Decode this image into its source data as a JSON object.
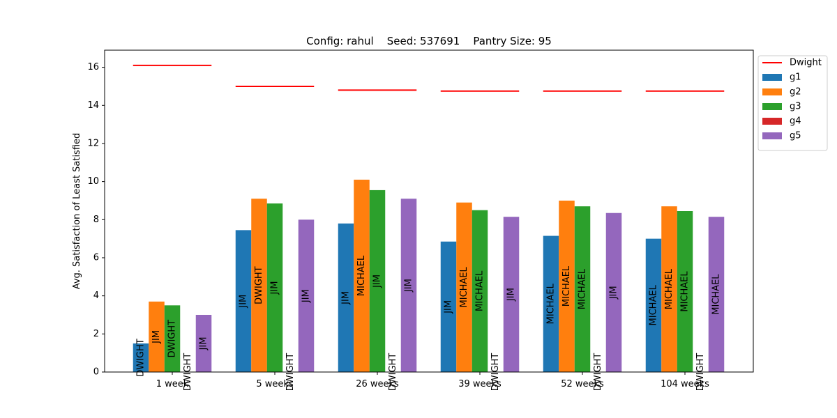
{
  "chart_data": {
    "type": "bar",
    "title": "Config: rahul    Seed: 537691    Pantry Size: 95",
    "xlabel": "",
    "ylabel": "Avg. Satisfaction of Least Satisfied",
    "ylim": [
      0,
      16.9
    ],
    "yticks": [
      0,
      2,
      4,
      6,
      8,
      10,
      12,
      14,
      16
    ],
    "categories": [
      "1 week",
      "5 weeks",
      "26 weeks",
      "39 weeks",
      "52 weeks",
      "104 weeks"
    ],
    "series": [
      {
        "name": "g1",
        "color": "#1f77b4",
        "values": [
          1.5,
          7.45,
          7.8,
          6.85,
          7.15,
          7.0
        ],
        "labels": [
          "DWIGHT",
          "JIM",
          "JIM",
          "JIM",
          "MICHAEL",
          "MICHAEL"
        ]
      },
      {
        "name": "g2",
        "color": "#ff7f0e",
        "values": [
          3.7,
          9.1,
          10.1,
          8.9,
          9.0,
          8.7
        ],
        "labels": [
          "JIM",
          "DWIGHT",
          "MICHAEL",
          "MICHAEL",
          "MICHAEL",
          "MICHAEL"
        ]
      },
      {
        "name": "g3",
        "color": "#2ca02c",
        "values": [
          3.5,
          8.85,
          9.55,
          8.5,
          8.7,
          8.45
        ],
        "labels": [
          "DWIGHT",
          "JIM",
          "JIM",
          "MICHAEL",
          "MICHAEL",
          "MICHAEL"
        ]
      },
      {
        "name": "g4",
        "color": "#d62728",
        "values": [
          0,
          0,
          0,
          0,
          0,
          0
        ],
        "labels": [
          "DWIGHT",
          "DWIGHT",
          "DWIGHT",
          "DWIGHT",
          "DWIGHT",
          "DWIGHT"
        ]
      },
      {
        "name": "g5",
        "color": "#9467bd",
        "values": [
          3.0,
          8.0,
          9.1,
          8.15,
          8.35,
          8.15
        ],
        "labels": [
          "JIM",
          "JIM",
          "JIM",
          "JIM",
          "JIM",
          "MICHAEL"
        ]
      }
    ],
    "lines": [
      {
        "name": "Dwight",
        "color": "#ff0000",
        "values": [
          16.1,
          15.0,
          14.8,
          14.75,
          14.75,
          14.75
        ]
      }
    ],
    "legend": {
      "placement": "outside-top-right",
      "entries": [
        "Dwight",
        "g1",
        "g2",
        "g3",
        "g4",
        "g5"
      ]
    },
    "grid": false
  }
}
